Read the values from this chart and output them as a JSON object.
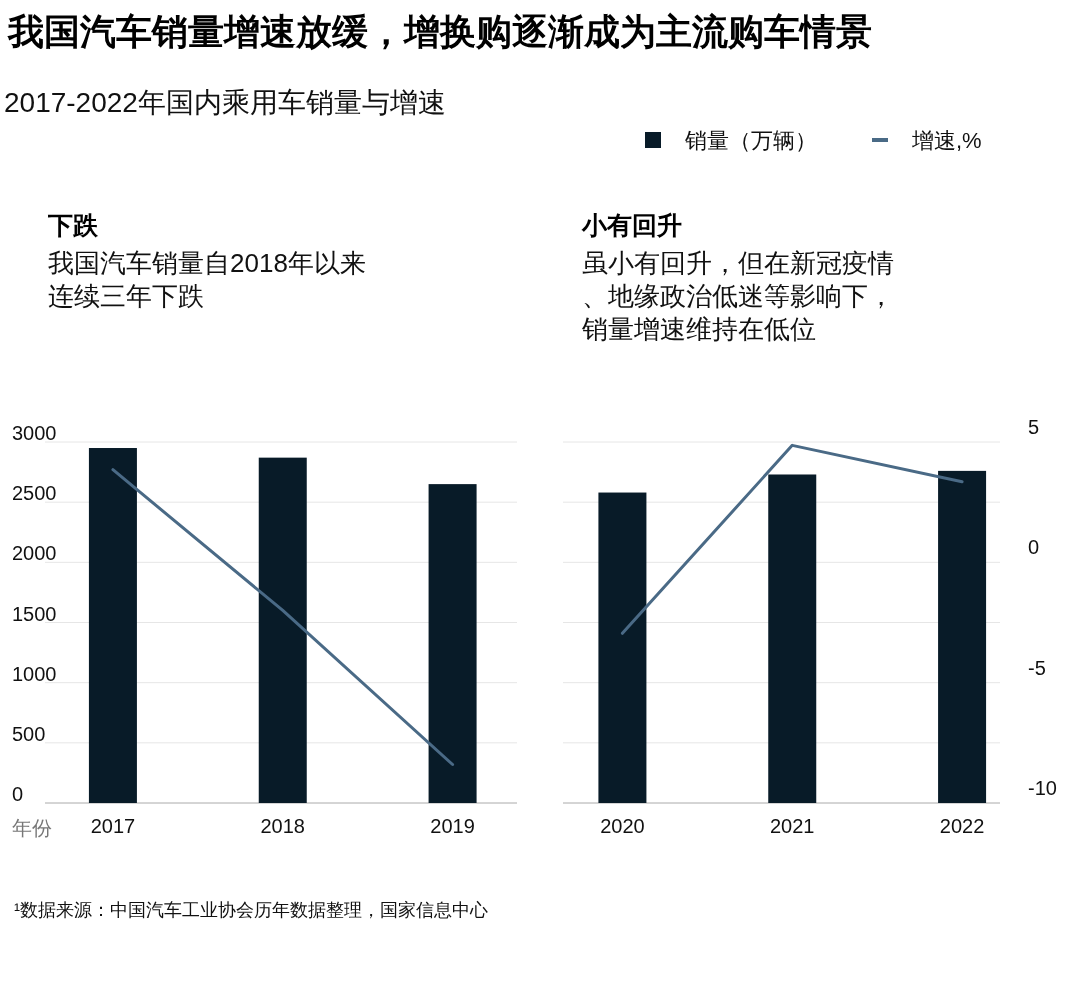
{
  "chart_data": {
    "type": "bar",
    "title": "我国汽车销量增速放缓，增换购逐渐成为主流购车情景",
    "subtitle": "2017-2022年国内乘用车销量与增速",
    "xlabel": "年份",
    "categories": [
      "2017",
      "2018",
      "2019",
      "2020",
      "2021",
      "2022"
    ],
    "series": [
      {
        "name": "销量（万辆）",
        "color": "#081b28",
        "values": [
          2950,
          2870,
          2650,
          2580,
          2730,
          2760
        ]
      },
      {
        "type": "line",
        "name": "增速,%",
        "axis": "y2",
        "color": "#4a6a86",
        "values": [
          3.85,
          -2.0,
          -8.4,
          null,
          null,
          null
        ]
      },
      {
        "type": "line",
        "axis": "y2",
        "color": "#4a6a86",
        "values": [
          null,
          null,
          null,
          -2.95,
          4.86,
          3.35
        ]
      }
    ],
    "ylim": [
      0,
      3000
    ],
    "yticks": [
      0,
      500,
      1000,
      1500,
      2000,
      2500,
      3000
    ],
    "y2lim": [
      -10,
      5
    ],
    "y2ticks": [
      -10,
      -5,
      0,
      5
    ],
    "grid": "y",
    "legend": "top right",
    "annotations": [
      "下跌",
      "我国汽车销量自2018年以来连续三年下跌",
      "小有回升",
      "虽小有回升，但在新冠疫情、地缘政治低迷等影响下，销量增速维持在低位",
      "¹数据来源：中国汽车工业协会历年数据整理，国家信息中心"
    ]
  }
}
